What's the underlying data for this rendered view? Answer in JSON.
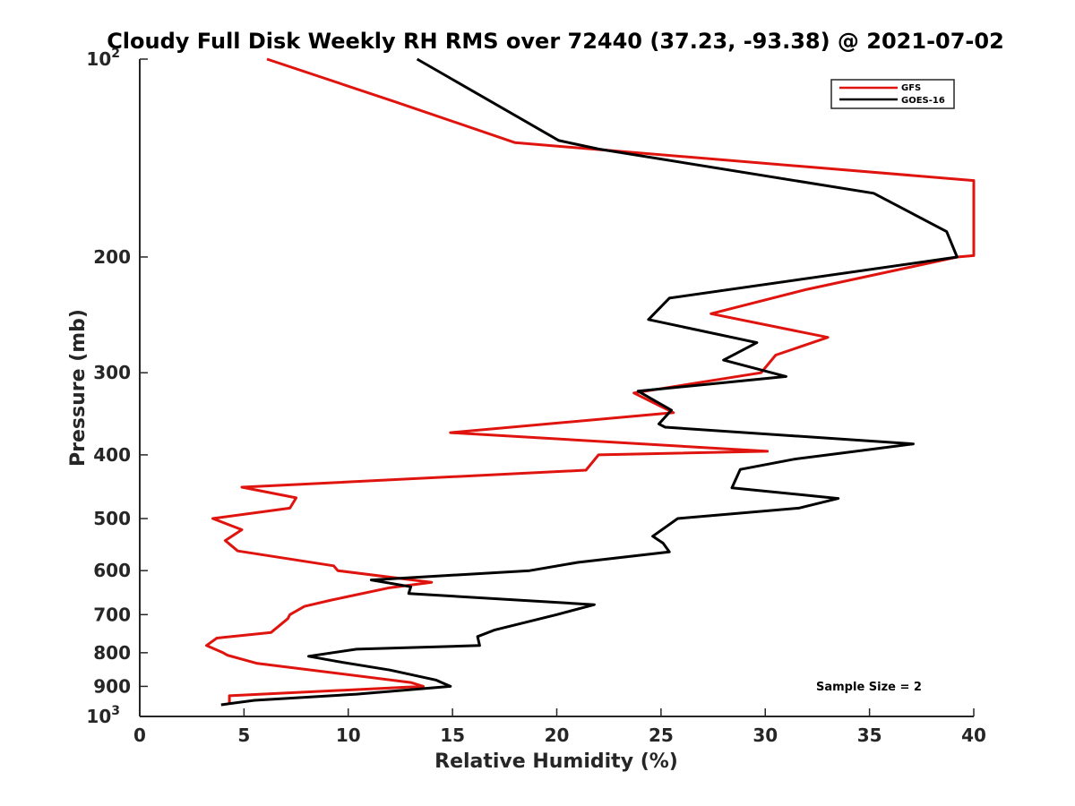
{
  "chart_data": {
    "type": "line",
    "title": "Cloudy Full Disk Weekly RH RMS over 72440 (37.23, -93.38) @ 2021-07-02",
    "xlabel": "Relative Humidity (%)",
    "ylabel": "Pressure (mb)",
    "xlim": [
      0,
      40
    ],
    "ylim": [
      100,
      1000
    ],
    "yscale": "log",
    "y_reversed": true,
    "xticks": [
      0,
      5,
      10,
      15,
      20,
      25,
      30,
      35,
      40
    ],
    "yticks": [
      100,
      200,
      300,
      400,
      500,
      600,
      700,
      800,
      900,
      1000
    ],
    "ytick_labels": [
      "10^2",
      "200",
      "300",
      "400",
      "500",
      "600",
      "700",
      "800",
      "900",
      "10^3"
    ],
    "legend_position": "top-right",
    "annotation": "Sample Size = 2",
    "series": [
      {
        "name": "GFS",
        "color": "#e0140e",
        "points": [
          [
            6.1,
            100
          ],
          [
            12.2,
            116
          ],
          [
            18.0,
            134
          ],
          [
            40.0,
            153
          ],
          [
            40.0,
            199
          ],
          [
            39.2,
            200
          ],
          [
            32.0,
            224
          ],
          [
            27.4,
            244
          ],
          [
            33.0,
            265
          ],
          [
            30.5,
            282
          ],
          [
            29.8,
            300
          ],
          [
            23.7,
            322
          ],
          [
            25.6,
            345
          ],
          [
            14.9,
            370
          ],
          [
            30.1,
            395
          ],
          [
            22.0,
            400
          ],
          [
            21.4,
            422
          ],
          [
            4.9,
            448
          ],
          [
            7.5,
            465
          ],
          [
            7.2,
            482
          ],
          [
            3.5,
            500
          ],
          [
            4.9,
            520
          ],
          [
            4.1,
            540
          ],
          [
            4.7,
            560
          ],
          [
            9.3,
            590
          ],
          [
            9.5,
            600
          ],
          [
            14.0,
            625
          ],
          [
            12.0,
            637
          ],
          [
            9.2,
            665
          ],
          [
            7.9,
            680
          ],
          [
            7.2,
            700
          ],
          [
            7.1,
            710
          ],
          [
            6.3,
            745
          ],
          [
            3.7,
            760
          ],
          [
            3.2,
            780
          ],
          [
            4.0,
            800
          ],
          [
            4.2,
            807
          ],
          [
            5.6,
            830
          ],
          [
            13.0,
            888
          ],
          [
            13.6,
            900
          ],
          [
            4.3,
            930
          ],
          [
            4.3,
            955
          ]
        ]
      },
      {
        "name": "GOES-16",
        "color": "#000000",
        "points": [
          [
            13.3,
            100
          ],
          [
            20.1,
            133
          ],
          [
            22.0,
            137
          ],
          [
            35.2,
            160
          ],
          [
            38.7,
            183
          ],
          [
            39.2,
            200
          ],
          [
            25.4,
            231
          ],
          [
            24.4,
            249
          ],
          [
            29.6,
            270
          ],
          [
            28.0,
            287
          ],
          [
            31.0,
            304
          ],
          [
            23.9,
            320
          ],
          [
            25.5,
            342
          ],
          [
            24.9,
            359
          ],
          [
            25.2,
            363
          ],
          [
            37.1,
            385
          ],
          [
            31.4,
            406
          ],
          [
            28.8,
            421
          ],
          [
            28.4,
            449
          ],
          [
            33.5,
            466
          ],
          [
            31.6,
            482
          ],
          [
            25.8,
            500
          ],
          [
            24.6,
            532
          ],
          [
            25.1,
            545
          ],
          [
            25.4,
            562
          ],
          [
            21.0,
            583
          ],
          [
            18.7,
            600
          ],
          [
            11.1,
            620
          ],
          [
            13.0,
            635
          ],
          [
            12.9,
            650
          ],
          [
            21.8,
            676
          ],
          [
            20.0,
            700
          ],
          [
            17.0,
            739
          ],
          [
            16.2,
            756
          ],
          [
            16.3,
            780
          ],
          [
            10.4,
            790
          ],
          [
            8.1,
            810
          ],
          [
            9.5,
            825
          ],
          [
            12.0,
            850
          ],
          [
            14.2,
            880
          ],
          [
            14.9,
            900
          ],
          [
            10.4,
            925
          ],
          [
            5.5,
            945
          ],
          [
            3.9,
            960
          ]
        ]
      }
    ]
  }
}
